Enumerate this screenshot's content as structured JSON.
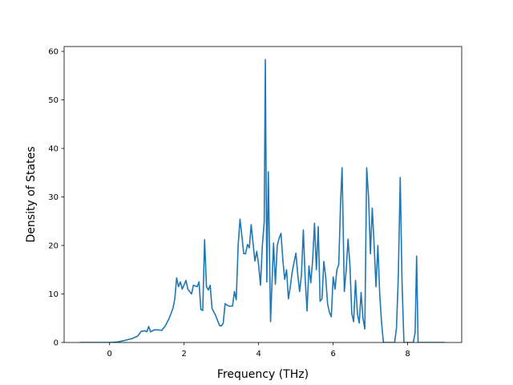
{
  "chart_data": {
    "type": "line",
    "title": "",
    "xlabel": "Frequency (THz)",
    "ylabel": "Density of States",
    "xlim": [
      -1.22,
      9.45
    ],
    "ylim": [
      0,
      61
    ],
    "xticks": [
      "0",
      "2",
      "4",
      "6",
      "8"
    ],
    "yticks": [
      "0",
      "10",
      "20",
      "30",
      "40",
      "50",
      "60"
    ],
    "grid": false,
    "legend": "none",
    "series": [
      {
        "color": "#1f77b4",
        "points": [
          [
            -0.8,
            0
          ],
          [
            0.0,
            0
          ],
          [
            0.2,
            0.1
          ],
          [
            0.4,
            0.4
          ],
          [
            0.6,
            0.8
          ],
          [
            0.75,
            1.3
          ],
          [
            0.85,
            2.3
          ],
          [
            0.95,
            2.4
          ],
          [
            1.0,
            2.2
          ],
          [
            1.05,
            3.3
          ],
          [
            1.1,
            2.2
          ],
          [
            1.2,
            2.6
          ],
          [
            1.3,
            2.6
          ],
          [
            1.4,
            2.5
          ],
          [
            1.5,
            3.5
          ],
          [
            1.6,
            5.0
          ],
          [
            1.7,
            7.0
          ],
          [
            1.75,
            9.0
          ],
          [
            1.8,
            13.3
          ],
          [
            1.85,
            11.5
          ],
          [
            1.9,
            12.5
          ],
          [
            1.95,
            11.0
          ],
          [
            2.05,
            12.8
          ],
          [
            2.1,
            11.0
          ],
          [
            2.2,
            10.0
          ],
          [
            2.25,
            11.8
          ],
          [
            2.35,
            11.5
          ],
          [
            2.4,
            12.5
          ],
          [
            2.45,
            6.8
          ],
          [
            2.5,
            6.6
          ],
          [
            2.55,
            21.2
          ],
          [
            2.6,
            11.5
          ],
          [
            2.65,
            10.8
          ],
          [
            2.7,
            11.8
          ],
          [
            2.75,
            7.0
          ],
          [
            2.85,
            5.5
          ],
          [
            2.95,
            3.5
          ],
          [
            3.0,
            3.4
          ],
          [
            3.05,
            4.0
          ],
          [
            3.1,
            8.0
          ],
          [
            3.2,
            7.5
          ],
          [
            3.3,
            7.5
          ],
          [
            3.35,
            10.5
          ],
          [
            3.4,
            8.8
          ],
          [
            3.45,
            20.0
          ],
          [
            3.5,
            25.4
          ],
          [
            3.55,
            22.0
          ],
          [
            3.6,
            18.3
          ],
          [
            3.65,
            18.3
          ],
          [
            3.7,
            20.2
          ],
          [
            3.75,
            19.5
          ],
          [
            3.8,
            24.3
          ],
          [
            3.85,
            20.5
          ],
          [
            3.9,
            16.8
          ],
          [
            3.95,
            18.8
          ],
          [
            4.0,
            16.0
          ],
          [
            4.05,
            11.8
          ],
          [
            4.1,
            20.0
          ],
          [
            4.15,
            24.8
          ],
          [
            4.18,
            58.3
          ],
          [
            4.22,
            12.5
          ],
          [
            4.26,
            35.2
          ],
          [
            4.32,
            4.3
          ],
          [
            4.4,
            20.5
          ],
          [
            4.45,
            12.0
          ],
          [
            4.5,
            20.0
          ],
          [
            4.55,
            21.5
          ],
          [
            4.6,
            22.5
          ],
          [
            4.65,
            17.0
          ],
          [
            4.7,
            13.0
          ],
          [
            4.75,
            15.0
          ],
          [
            4.8,
            9.0
          ],
          [
            4.85,
            11.5
          ],
          [
            4.9,
            14.5
          ],
          [
            4.95,
            16.5
          ],
          [
            5.0,
            18.4
          ],
          [
            5.05,
            14.0
          ],
          [
            5.1,
            10.5
          ],
          [
            5.15,
            14.0
          ],
          [
            5.2,
            23.2
          ],
          [
            5.25,
            13.0
          ],
          [
            5.3,
            6.5
          ],
          [
            5.35,
            15.8
          ],
          [
            5.4,
            12.3
          ],
          [
            5.45,
            17.0
          ],
          [
            5.5,
            24.6
          ],
          [
            5.55,
            15.0
          ],
          [
            5.6,
            23.9
          ],
          [
            5.65,
            8.5
          ],
          [
            5.7,
            9.0
          ],
          [
            5.75,
            16.7
          ],
          [
            5.8,
            13.5
          ],
          [
            5.85,
            8.0
          ],
          [
            5.9,
            6.2
          ],
          [
            5.95,
            5.3
          ],
          [
            6.0,
            13.5
          ],
          [
            6.05,
            11.0
          ],
          [
            6.1,
            15.0
          ],
          [
            6.15,
            16.0
          ],
          [
            6.2,
            29.0
          ],
          [
            6.24,
            36.0
          ],
          [
            6.3,
            10.5
          ],
          [
            6.35,
            15.0
          ],
          [
            6.4,
            21.3
          ],
          [
            6.45,
            16.0
          ],
          [
            6.5,
            6.0
          ],
          [
            6.55,
            4.3
          ],
          [
            6.6,
            12.8
          ],
          [
            6.65,
            6.0
          ],
          [
            6.7,
            4.0
          ],
          [
            6.75,
            10.3
          ],
          [
            6.8,
            5.0
          ],
          [
            6.85,
            2.8
          ],
          [
            6.9,
            36.0
          ],
          [
            6.95,
            30.0
          ],
          [
            7.0,
            18.3
          ],
          [
            7.05,
            27.7
          ],
          [
            7.1,
            20.0
          ],
          [
            7.15,
            11.5
          ],
          [
            7.2,
            20.0
          ],
          [
            7.25,
            10.0
          ],
          [
            7.3,
            4.0
          ],
          [
            7.35,
            0
          ],
          [
            7.65,
            0
          ],
          [
            7.7,
            3.0
          ],
          [
            7.75,
            14.0
          ],
          [
            7.8,
            34.0
          ],
          [
            7.85,
            12.0
          ],
          [
            7.9,
            0
          ],
          [
            8.15,
            0
          ],
          [
            8.2,
            2.0
          ],
          [
            8.24,
            17.8
          ],
          [
            8.28,
            0
          ],
          [
            9.0,
            0
          ]
        ]
      }
    ]
  }
}
